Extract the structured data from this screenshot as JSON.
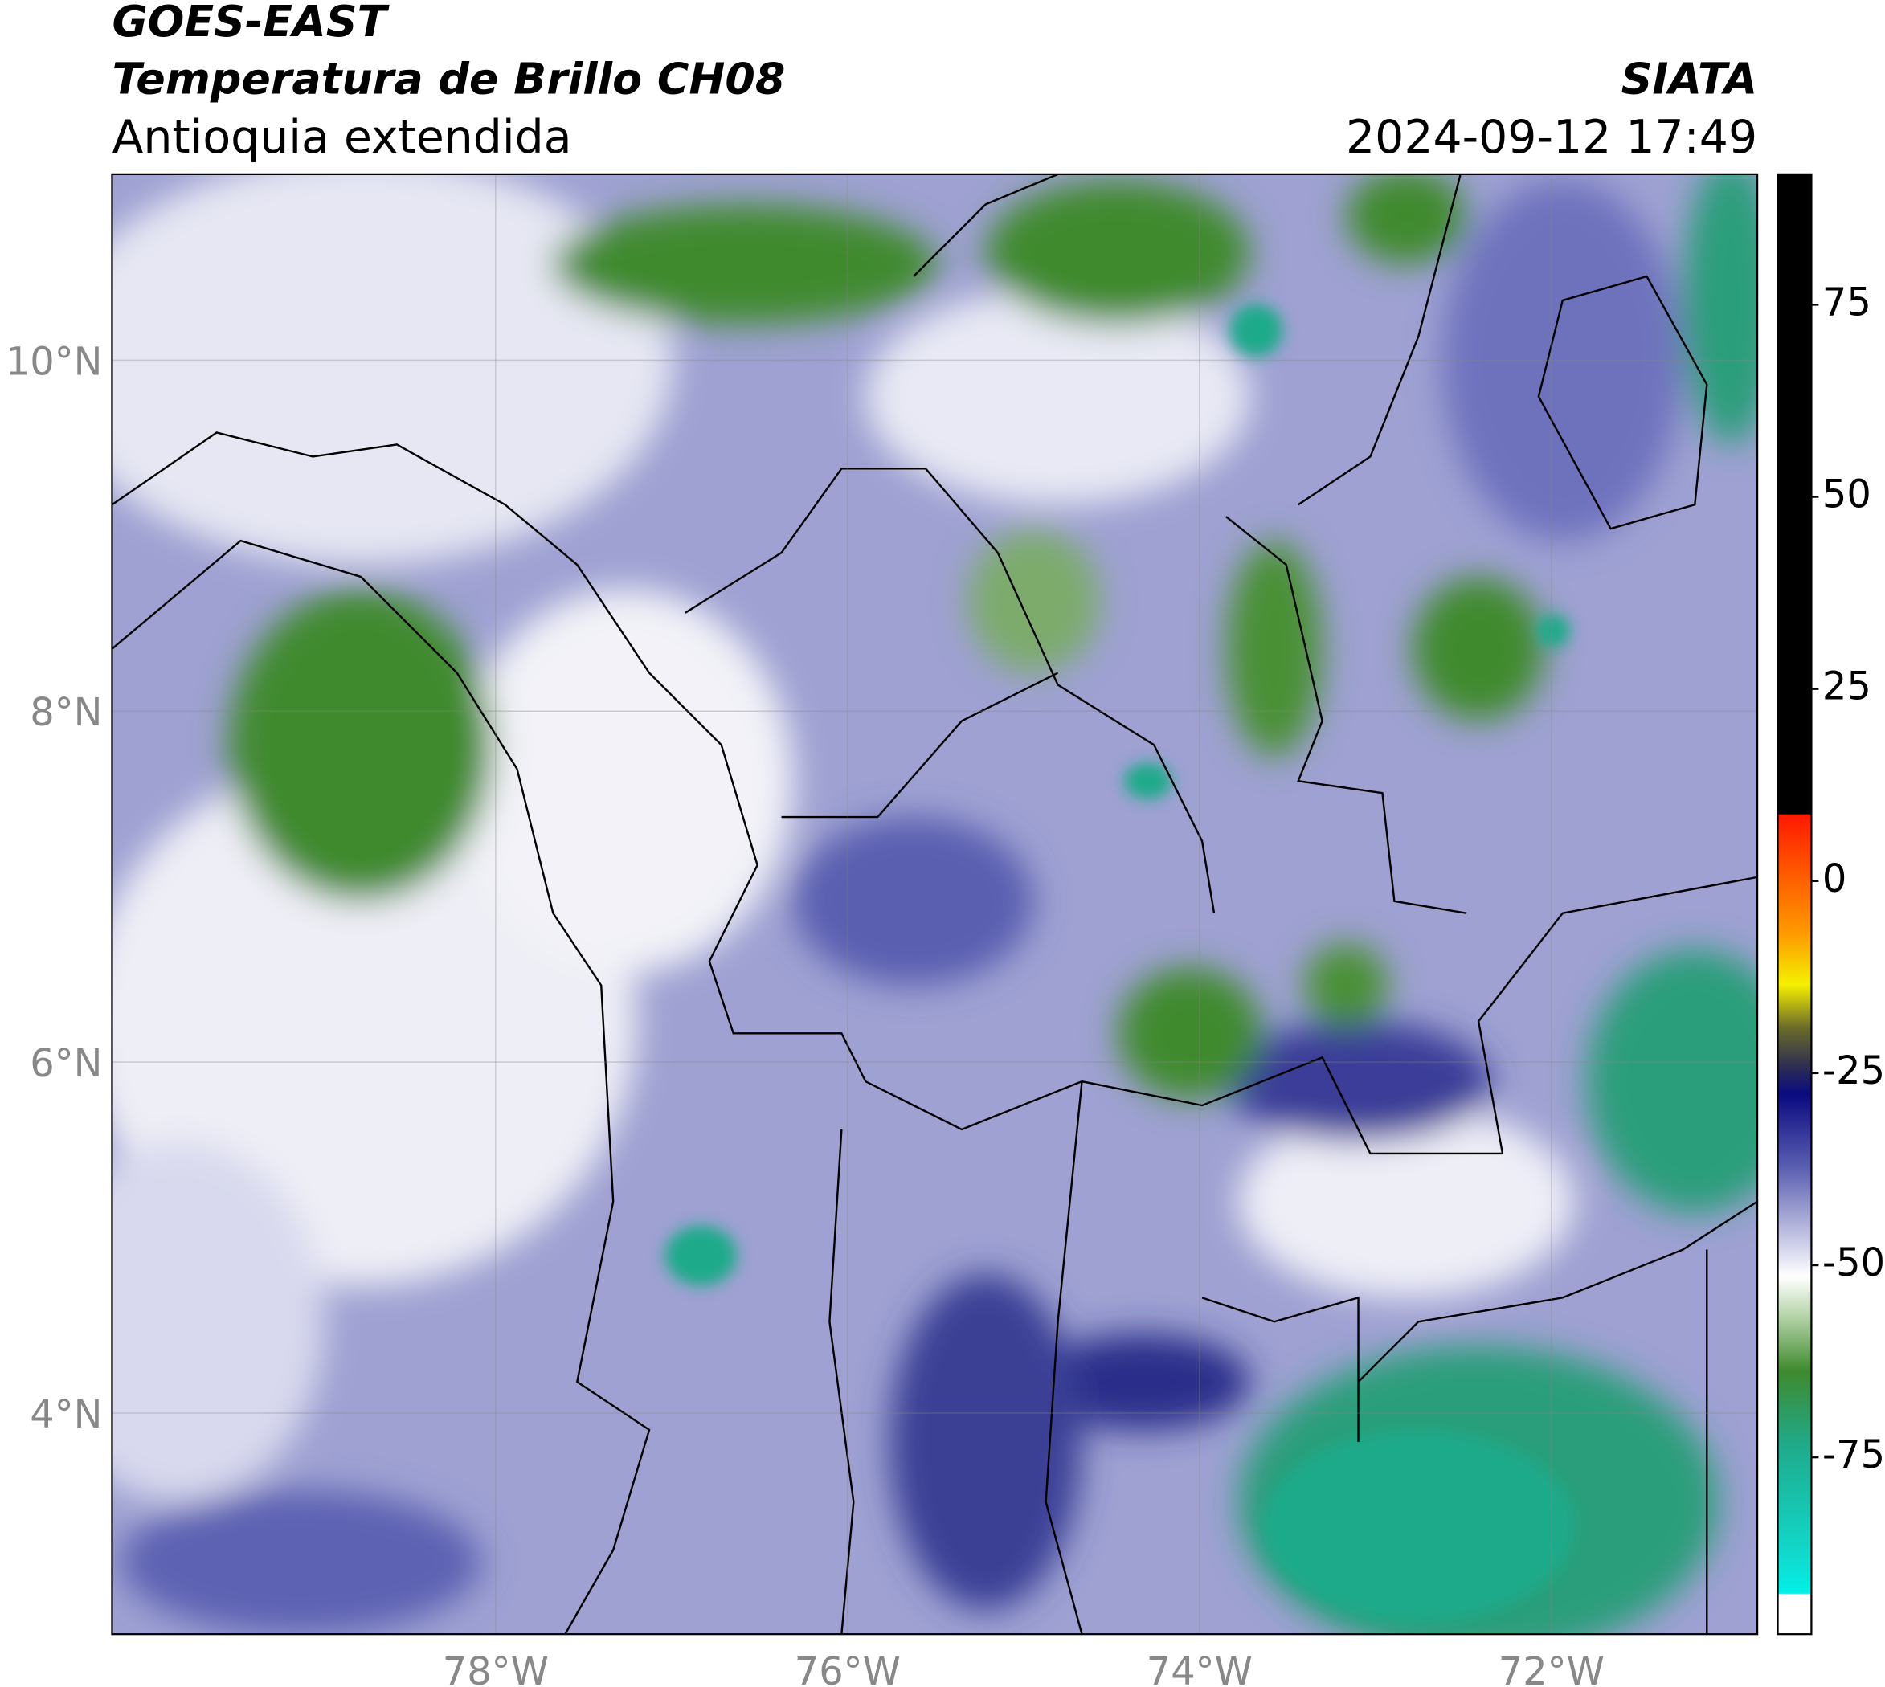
{
  "header": {
    "title": "GOES-EAST",
    "subtitle": "Temperatura de Brillo CH08",
    "region": "Antioquia extendida",
    "source": "SIATA",
    "datetime": "2024-09-12 17:49"
  },
  "map": {
    "xlim": [
      -80.18,
      -70.83
    ],
    "ylim": [
      2.74,
      11.06
    ],
    "xticks": [
      {
        "value": -78,
        "label": "78°W"
      },
      {
        "value": -76,
        "label": "76°W"
      },
      {
        "value": -74,
        "label": "74°W"
      },
      {
        "value": -72,
        "label": "72°W"
      }
    ],
    "yticks": [
      {
        "value": 10,
        "label": "10°N"
      },
      {
        "value": 8,
        "label": "8°N"
      },
      {
        "value": 6,
        "label": "6°N"
      },
      {
        "value": 4,
        "label": "4°N"
      }
    ],
    "grid": true,
    "colorbar": {
      "lim": [
        -98,
        92
      ],
      "ticks": [
        75,
        50,
        25,
        0,
        -25,
        -50,
        -75
      ]
    }
  }
}
